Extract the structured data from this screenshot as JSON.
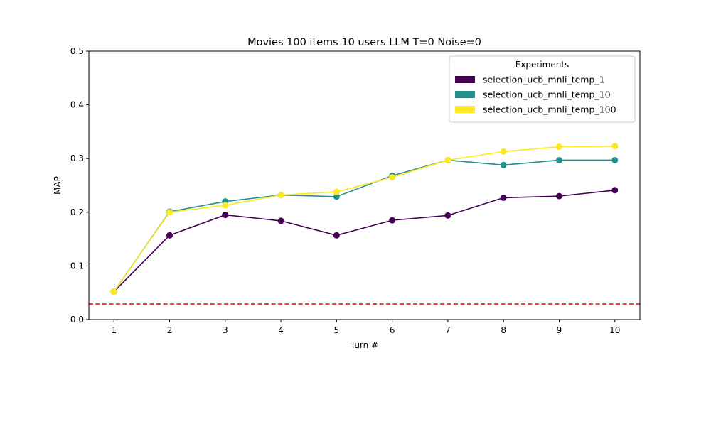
{
  "chart_data": {
    "type": "line",
    "title": "Movies 100 items 10 users LLM T=0 Noise=0",
    "xlabel": "Turn #",
    "ylabel": "MAP",
    "x": [
      1,
      2,
      3,
      4,
      5,
      6,
      7,
      8,
      9,
      10
    ],
    "xlim": [
      0.55,
      10.45
    ],
    "ylim": [
      0.0,
      0.5
    ],
    "yticks": [
      "0.0",
      "0.1",
      "0.2",
      "0.3",
      "0.4",
      "0.5"
    ],
    "xticks": [
      "1",
      "2",
      "3",
      "4",
      "5",
      "6",
      "7",
      "8",
      "9",
      "10"
    ],
    "grid": false,
    "legend": {
      "title": "Experiments",
      "placement": "top-right"
    },
    "series": [
      {
        "name": "selection_ucb_mnli_temp_1",
        "color": "#440154",
        "values": [
          0.052,
          0.157,
          0.195,
          0.184,
          0.157,
          0.185,
          0.194,
          0.227,
          0.23,
          0.241
        ]
      },
      {
        "name": "selection_ucb_mnli_temp_10",
        "color": "#21918c",
        "values": [
          0.052,
          0.201,
          0.22,
          0.232,
          0.229,
          0.268,
          0.297,
          0.288,
          0.297,
          0.297
        ]
      },
      {
        "name": "selection_ucb_mnli_temp_100",
        "color": "#fde725",
        "values": [
          0.052,
          0.2,
          0.213,
          0.232,
          0.238,
          0.265,
          0.297,
          0.313,
          0.322,
          0.323
        ]
      }
    ],
    "reference_line": {
      "y": 0.029,
      "color": "#e41a1c",
      "style": "dashed"
    }
  }
}
